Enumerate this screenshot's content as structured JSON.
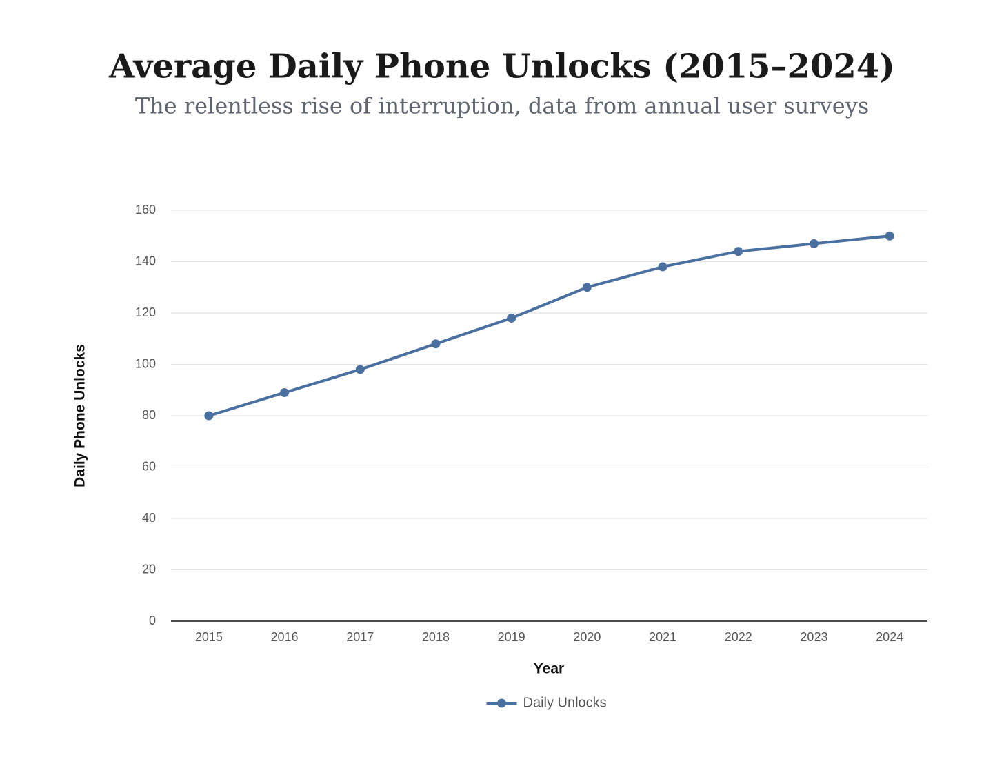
{
  "chart_data": {
    "type": "line",
    "title": "Average Daily Phone Unlocks (2015–2024)",
    "subtitle": "The relentless rise of interruption, data from annual user surveys",
    "x_label": "Year",
    "y_label": "Daily Phone Unlocks",
    "categories": [
      "2015",
      "2016",
      "2017",
      "2018",
      "2019",
      "2020",
      "2021",
      "2022",
      "2023",
      "2024"
    ],
    "series": [
      {
        "name": "Daily Unlocks",
        "color": "#4a70a0",
        "values": [
          80,
          89,
          98,
          108,
          118,
          130,
          138,
          144,
          147,
          150
        ]
      }
    ],
    "ylim": [
      0,
      160
    ],
    "yticks": [
      0,
      20,
      40,
      60,
      80,
      100,
      120,
      140,
      160
    ],
    "grid": true,
    "legend": "bottom"
  }
}
